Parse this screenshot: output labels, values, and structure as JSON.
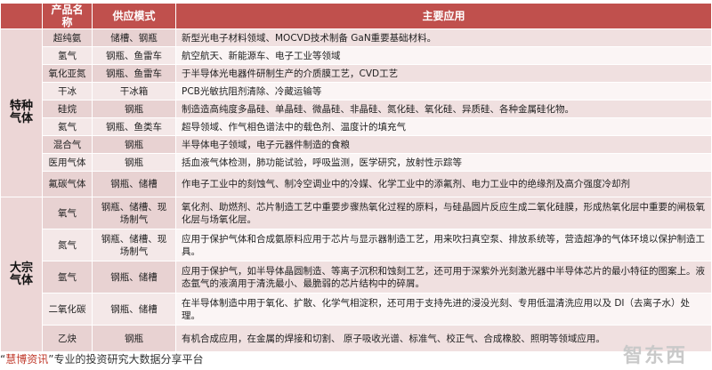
{
  "headers": [
    "",
    "产品名称",
    "供应模式",
    "主要应用"
  ],
  "groups": [
    {
      "category": "特种气体",
      "rows": [
        {
          "name": "超纯氨",
          "supply": "储槽、钢瓶",
          "app": "新型光电子材料领域、MOCVD技术制备 GaN重要基础材料。"
        },
        {
          "name": "氢气",
          "supply": "钢瓶、鱼雷车",
          "app": "航空航天、新能源车、电子工业等领域"
        },
        {
          "name": "氧化亚氮",
          "supply": "钢瓶、鱼雷车",
          "app": "于半导体光电器件研制生产的介质膜工艺，CVD工艺"
        },
        {
          "name": "干冰",
          "supply": "干冰箱",
          "app": "PCB光敏抗阻剂清除、冷藏运输等"
        },
        {
          "name": "硅烷",
          "supply": "钢瓶",
          "app": "制造造高纯度多晶硅、单晶硅、微晶硅、非晶硅、氮化硅、氧化硅、异质硅、各种金属硅化物。"
        },
        {
          "name": "氦气",
          "supply": "钢瓶、鱼类车",
          "app": "超导领域、作气相色谱法中的载色剂、温度计的填充气"
        },
        {
          "name": "混合气",
          "supply": "钢瓶",
          "app": "半导体电子领域，电子元器件制造的食粮"
        },
        {
          "name": "医用气体",
          "supply": "钢瓶",
          "app": "括血液气体检测，肺功能试验，呼吸监测，医学研究，放射性示踪等"
        },
        {
          "name": "氟碳气体",
          "supply": "钢瓶、储槽",
          "app": "作电子工业中的刻蚀气、制冷空调业中的冷媒、化学工业中的添氟剂、电力工业中的绝缘剂及高介强度冷却剂"
        }
      ]
    },
    {
      "category": "大宗气体",
      "rows": [
        {
          "name": "氧气",
          "supply": "钢瓶、储槽、现场制气",
          "app": "氧化剂、助燃剂、芯片制造工艺中重要步骤热氧化过程的原料，与硅晶圆片反应生成二氧化硅膜，形成热氧化层中重要的闸极氧化层与场氧化层。"
        },
        {
          "name": "氮气",
          "supply": "钢瓶、储槽、现场制气",
          "app": "应用于保护气体和合成氨原料应用于芯片与显示器制造工艺，用来吹扫真空泵、排放系统等，营造超净的气体环境以保护制造工具。"
        },
        {
          "name": "氩气",
          "supply": "钢瓶、储槽",
          "app": "应用于保护气，如半导体晶圆制造、等离子沉积和蚀刻工艺，还可用于深紫外光刻激光器中半导体芯片的最小特征的图案上。液态氩气的液滴用于清洗最小、最脆弱的芯片结构中的碎屑。"
        },
        {
          "name": "二氧化碳",
          "supply": "钢瓶、储槽",
          "app": "在半导体制造中用于氧化、扩散、化学气相淀积，还可用于支持先进的浸没光刻、专用低温清洗应用以及 DI（去离子水）处理。"
        },
        {
          "name": "乙炔",
          "supply": "钢瓶",
          "app": "有机合成应用，在金属的焊接和切割、 原子吸收光谱、标准气、校正气、合成橡胶、照明等领域应用。"
        }
      ]
    }
  ],
  "footer": {
    "quote_open": "“",
    "brand": "慧博资讯",
    "quote_close": "”",
    "text": "专业的投资研究大数据分享平台"
  },
  "watermark": "智东西",
  "colors": {
    "header": "#c0504d",
    "category": "#ecd6d6",
    "row_dark": "#e8d2d2",
    "row_light": "#f4e8e8"
  }
}
